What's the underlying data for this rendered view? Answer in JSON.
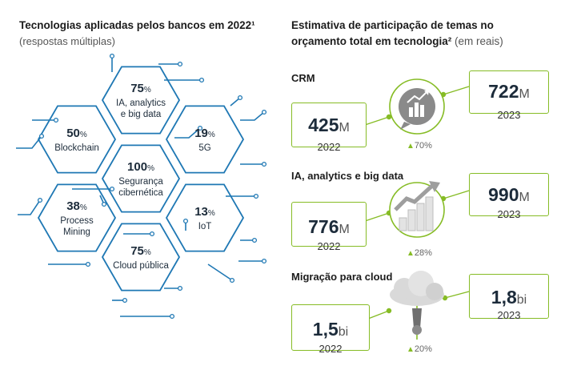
{
  "left": {
    "title": "Tecnologias aplicadas pelos bancos em 2022¹",
    "subtitle": "(respostas múltiplas)"
  },
  "right": {
    "title_line1": "Estimativa de participação de temas no",
    "title_line2": "orçamento total em tecnologia²",
    "title_suffix": " (em reais)"
  },
  "chart_data": [
    {
      "type": "table",
      "title": "Tecnologias aplicadas pelos bancos em 2022¹",
      "subtitle": "(respostas múltiplas)",
      "unit": "%",
      "items": [
        {
          "label": "IA, analytics e big data",
          "value": 75,
          "value_text": "75"
        },
        {
          "label": "Blockchain",
          "value": 50,
          "value_text": "50"
        },
        {
          "label": "5G",
          "value": 19,
          "value_text": "19"
        },
        {
          "label": "Segurança cibernética",
          "value": 100,
          "value_text": "100"
        },
        {
          "label": "Process Mining",
          "value": 38,
          "value_text": "38"
        },
        {
          "label": "IoT",
          "value": 13,
          "value_text": "13"
        },
        {
          "label": "Cloud pública",
          "value": 75,
          "value_text": "75"
        }
      ]
    },
    {
      "type": "table",
      "title": "Estimativa de participação de temas no orçamento total em tecnologia²",
      "subtitle": "(em reais)",
      "rows": [
        {
          "theme": "CRM",
          "year_a": "2022",
          "value_a": "425",
          "unit_a": "M",
          "year_b": "2023",
          "value_b": "722",
          "unit_b": "M",
          "growth": "70%"
        },
        {
          "theme": "IA, analytics e big data",
          "year_a": "2022",
          "value_a": "776",
          "unit_a": "M",
          "year_b": "2023",
          "value_b": "990",
          "unit_b": "M",
          "growth": "28%"
        },
        {
          "theme": "Migração para cloud",
          "year_a": "2022",
          "value_a": "1,5",
          "unit_a": "bi",
          "year_b": "2023",
          "value_b": "1,8",
          "unit_b": "bi",
          "growth": "20%"
        }
      ]
    }
  ],
  "colors": {
    "hex_stroke": "#1f78b4",
    "green": "#86bc25",
    "text_dark": "#1c2b3a"
  },
  "icons": [
    "bar-chart-bubble-icon",
    "growth-bars-icon",
    "cloud-pillar-icon"
  ]
}
